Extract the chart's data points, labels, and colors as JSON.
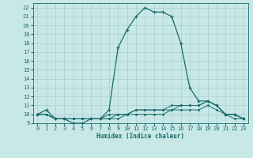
{
  "xlabel": "Humidex (Indice chaleur)",
  "bg_color": "#c8e8e8",
  "line_color": "#1a6b6b",
  "grid_color": "#a8cece",
  "x_main": [
    0,
    1,
    2,
    3,
    4,
    5,
    6,
    7,
    8,
    9,
    10,
    11,
    12,
    13,
    14,
    15,
    16,
    17,
    18,
    19,
    20,
    21,
    22,
    23
  ],
  "y_main": [
    10,
    10.5,
    9.5,
    9.5,
    9,
    9,
    9.5,
    9.5,
    10.5,
    17.5,
    19.5,
    21,
    22,
    21.5,
    21.5,
    21,
    18,
    13,
    11.5,
    11.5,
    11,
    10,
    10,
    9.5
  ],
  "y_line2": [
    10,
    10,
    9.5,
    9.5,
    9.5,
    9.5,
    9.5,
    9.5,
    10,
    10,
    10,
    10.5,
    10.5,
    10.5,
    10.5,
    11,
    11,
    11,
    11,
    11.5,
    11,
    10,
    10,
    9.5
  ],
  "y_line3": [
    10,
    10,
    9.5,
    9.5,
    9.5,
    9.5,
    9.5,
    9.5,
    9.5,
    10,
    10,
    10.5,
    10.5,
    10.5,
    10.5,
    10.5,
    11,
    11,
    11,
    11.5,
    11,
    10,
    10,
    9.5
  ],
  "y_line4": [
    10,
    10,
    9.5,
    9.5,
    9.5,
    9.5,
    9.5,
    9.5,
    9.5,
    9.5,
    10,
    10,
    10,
    10,
    10,
    10.5,
    10.5,
    10.5,
    10.5,
    11,
    10.5,
    10,
    9.5,
    9.5
  ],
  "xlim": [
    -0.5,
    23.5
  ],
  "ylim": [
    9,
    22.5
  ],
  "yticks": [
    9,
    10,
    11,
    12,
    13,
    14,
    15,
    16,
    17,
    18,
    19,
    20,
    21,
    22
  ],
  "xticks": [
    0,
    1,
    2,
    3,
    4,
    5,
    6,
    7,
    8,
    9,
    10,
    11,
    12,
    13,
    14,
    15,
    16,
    17,
    18,
    19,
    20,
    21,
    22,
    23
  ],
  "xlabel_fontsize": 5.5,
  "tick_fontsize": 5.0
}
